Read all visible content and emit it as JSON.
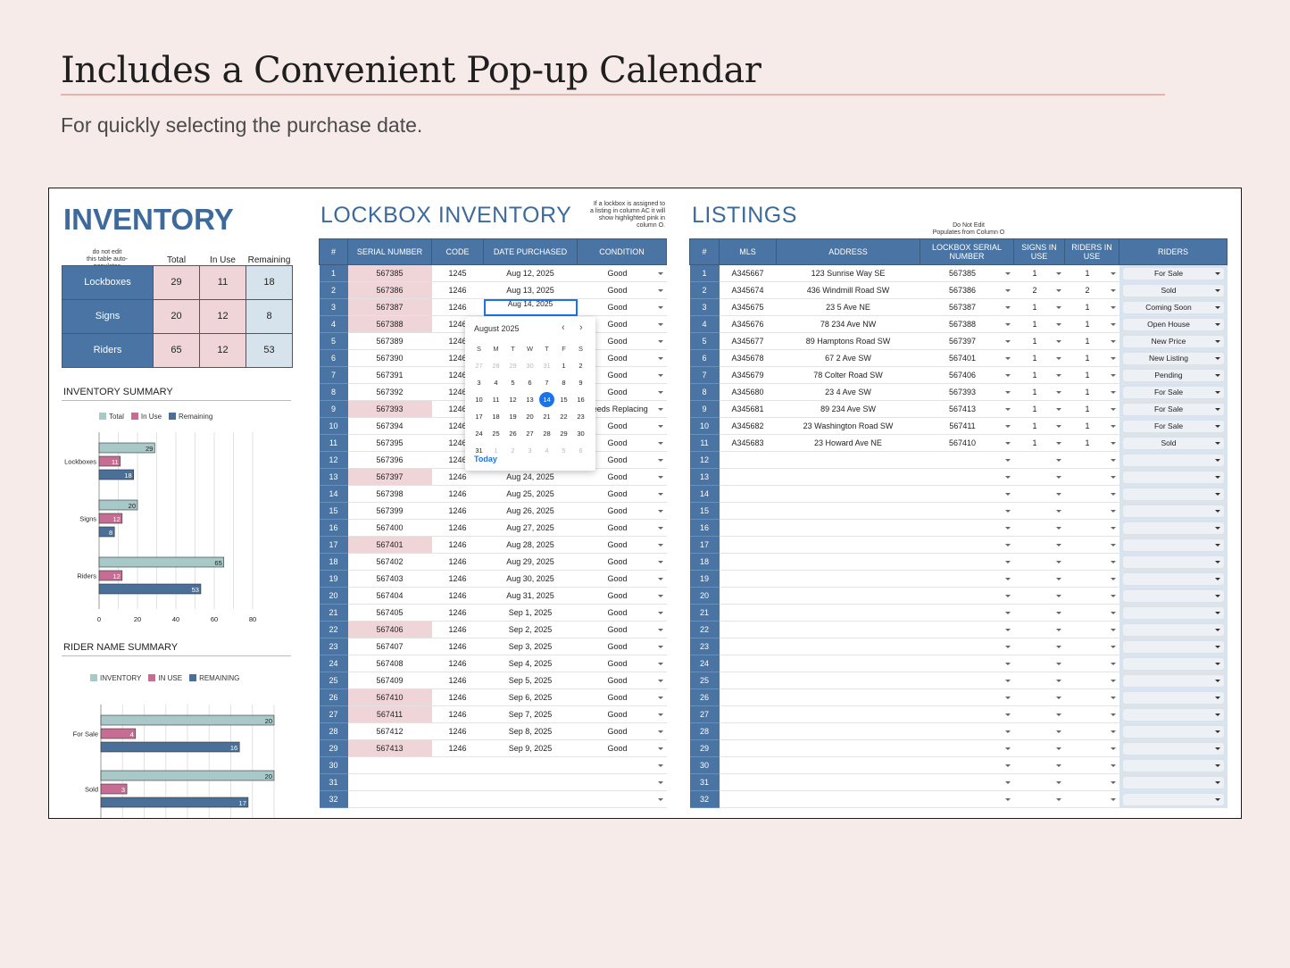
{
  "hero": {
    "title": "Includes a Convenient Pop-up Calendar",
    "subtitle": "For quickly selecting the purchase date."
  },
  "inventory": {
    "title": "INVENTORY",
    "note": [
      "do not edit",
      "this table auto-populates"
    ],
    "headers": [
      "Total",
      "In Use",
      "Remaining"
    ],
    "rows": [
      {
        "label": "Lockboxes",
        "total": "29",
        "in_use": "11",
        "remaining": "18"
      },
      {
        "label": "Signs",
        "total": "20",
        "in_use": "12",
        "remaining": "8"
      },
      {
        "label": "Riders",
        "total": "65",
        "in_use": "12",
        "remaining": "53"
      }
    ]
  },
  "inventory_summary": {
    "title": "INVENTORY SUMMARY"
  },
  "rider_summary": {
    "title": "RIDER NAME SUMMARY"
  },
  "chart_data": [
    {
      "type": "bar",
      "orientation": "horizontal",
      "title": "INVENTORY SUMMARY",
      "categories": [
        "Lockboxes",
        "Signs",
        "Riders"
      ],
      "series": [
        {
          "name": "Total",
          "values": [
            29,
            20,
            65
          ]
        },
        {
          "name": "In Use",
          "values": [
            11,
            12,
            12
          ]
        },
        {
          "name": "Remaining",
          "values": [
            18,
            8,
            53
          ]
        }
      ],
      "xlim": [
        0,
        80
      ],
      "xticks": [
        "0",
        "20",
        "40",
        "60",
        "80"
      ],
      "legend": "top",
      "colors": [
        "#a9c9c9",
        "#c76d94",
        "#4a6f98"
      ]
    },
    {
      "type": "bar",
      "orientation": "horizontal",
      "title": "RIDER NAME SUMMARY",
      "categories": [
        "For Sale",
        "Sold"
      ],
      "series": [
        {
          "name": "INVENTORY",
          "values": [
            20,
            20
          ]
        },
        {
          "name": "IN USE",
          "values": [
            4,
            3
          ]
        },
        {
          "name": "REMAINING",
          "values": [
            16,
            17
          ]
        }
      ],
      "xlim": [
        0,
        20
      ],
      "legend": "top",
      "colors": [
        "#a9c9c9",
        "#c76d94",
        "#4a6f98"
      ]
    }
  ],
  "lockbox": {
    "title": "LOCKBOX INVENTORY",
    "note": [
      "If a lockbox is assigned to",
      "a listing in column AC it will",
      "show highlighted pink in",
      "column O."
    ],
    "headers": [
      "#",
      "SERIAL NUMBER",
      "CODE",
      "DATE PURCHASED",
      "CONDITION"
    ],
    "rows": [
      [
        "1",
        "567385",
        "1245",
        "Aug 12, 2025",
        "Good",
        true
      ],
      [
        "2",
        "567386",
        "1246",
        "Aug 13, 2025",
        "Good",
        true
      ],
      [
        "3",
        "567387",
        "1246",
        "Aug 14, 2025",
        "Good",
        true
      ],
      [
        "4",
        "567388",
        "1246",
        "",
        "Good",
        true
      ],
      [
        "5",
        "567389",
        "1246",
        "",
        "Good",
        false
      ],
      [
        "6",
        "567390",
        "1246",
        "",
        "Good",
        false
      ],
      [
        "7",
        "567391",
        "1246",
        "",
        "Good",
        false
      ],
      [
        "8",
        "567392",
        "1246",
        "",
        "Good",
        false
      ],
      [
        "9",
        "567393",
        "1246",
        "",
        "Needs Replacing",
        true
      ],
      [
        "10",
        "567394",
        "1246",
        "",
        "Good",
        false
      ],
      [
        "11",
        "567395",
        "1246",
        "",
        "Good",
        false
      ],
      [
        "12",
        "567396",
        "1246",
        "",
        "Good",
        false
      ],
      [
        "13",
        "567397",
        "1246",
        "Aug 24, 2025",
        "Good",
        true
      ],
      [
        "14",
        "567398",
        "1246",
        "Aug 25, 2025",
        "Good",
        false
      ],
      [
        "15",
        "567399",
        "1246",
        "Aug 26, 2025",
        "Good",
        false
      ],
      [
        "16",
        "567400",
        "1246",
        "Aug 27, 2025",
        "Good",
        false
      ],
      [
        "17",
        "567401",
        "1246",
        "Aug 28, 2025",
        "Good",
        true
      ],
      [
        "18",
        "567402",
        "1246",
        "Aug 29, 2025",
        "Good",
        false
      ],
      [
        "19",
        "567403",
        "1246",
        "Aug 30, 2025",
        "Good",
        false
      ],
      [
        "20",
        "567404",
        "1246",
        "Aug 31, 2025",
        "Good",
        false
      ],
      [
        "21",
        "567405",
        "1246",
        "Sep 1, 2025",
        "Good",
        false
      ],
      [
        "22",
        "567406",
        "1246",
        "Sep 2, 2025",
        "Good",
        true
      ],
      [
        "23",
        "567407",
        "1246",
        "Sep 3, 2025",
        "Good",
        false
      ],
      [
        "24",
        "567408",
        "1246",
        "Sep 4, 2025",
        "Good",
        false
      ],
      [
        "25",
        "567409",
        "1246",
        "Sep 5, 2025",
        "Good",
        false
      ],
      [
        "26",
        "567410",
        "1246",
        "Sep 6, 2025",
        "Good",
        true
      ],
      [
        "27",
        "567411",
        "1246",
        "Sep 7, 2025",
        "Good",
        true
      ],
      [
        "28",
        "567412",
        "1246",
        "Sep 8, 2025",
        "Good",
        false
      ],
      [
        "29",
        "567413",
        "1246",
        "Sep 9, 2025",
        "Good",
        true
      ],
      [
        "30",
        "",
        "",
        "",
        "",
        false
      ],
      [
        "31",
        "",
        "",
        "",
        "",
        false
      ],
      [
        "32",
        "",
        "",
        "",
        "",
        false
      ]
    ]
  },
  "calendar": {
    "title": "August 2025",
    "prev": "‹",
    "next": "›",
    "today": "Today",
    "weekdays": [
      "S",
      "M",
      "T",
      "W",
      "T",
      "F",
      "S"
    ],
    "days": [
      [
        "27",
        "o"
      ],
      [
        "28",
        "o"
      ],
      [
        "29",
        "o"
      ],
      [
        "30",
        "o"
      ],
      [
        "31",
        "o"
      ],
      [
        "1",
        ""
      ],
      [
        "2",
        ""
      ],
      [
        "3",
        ""
      ],
      [
        "4",
        ""
      ],
      [
        "5",
        ""
      ],
      [
        "6",
        ""
      ],
      [
        "7",
        ""
      ],
      [
        "8",
        ""
      ],
      [
        "9",
        ""
      ],
      [
        "10",
        ""
      ],
      [
        "11",
        ""
      ],
      [
        "12",
        ""
      ],
      [
        "13",
        ""
      ],
      [
        "14",
        "sl"
      ],
      [
        "15",
        ""
      ],
      [
        "16",
        ""
      ],
      [
        "17",
        ""
      ],
      [
        "18",
        ""
      ],
      [
        "19",
        ""
      ],
      [
        "20",
        ""
      ],
      [
        "21",
        ""
      ],
      [
        "22",
        ""
      ],
      [
        "23",
        ""
      ],
      [
        "24",
        ""
      ],
      [
        "25",
        ""
      ],
      [
        "26",
        ""
      ],
      [
        "27",
        ""
      ],
      [
        "28",
        ""
      ],
      [
        "29",
        ""
      ],
      [
        "30",
        ""
      ],
      [
        "31",
        ""
      ],
      [
        "1",
        "o"
      ],
      [
        "2",
        "o"
      ],
      [
        "3",
        "o"
      ],
      [
        "4",
        "o"
      ],
      [
        "5",
        "o"
      ],
      [
        "6",
        "o"
      ]
    ]
  },
  "listings": {
    "title": "LISTINGS",
    "note": [
      "Do Not Edit",
      "Populates from Column O"
    ],
    "headers": [
      "#",
      "MLS",
      "ADDRESS",
      "LOCKBOX SERIAL NUMBER",
      "SIGNS IN USE",
      "RIDERS IN USE",
      "RIDERS"
    ],
    "rows": [
      [
        "1",
        "A345667",
        "123 Sunrise Way SE",
        "567385",
        "1",
        "1",
        "For Sale"
      ],
      [
        "2",
        "A345674",
        "436 Windmill Road SW",
        "567386",
        "2",
        "2",
        "Sold"
      ],
      [
        "3",
        "A345675",
        "23 5 Ave NE",
        "567387",
        "1",
        "1",
        "Coming Soon"
      ],
      [
        "4",
        "A345676",
        "78 234 Ave NW",
        "567388",
        "1",
        "1",
        "Open House"
      ],
      [
        "5",
        "A345677",
        "89 Hamptons Road SW",
        "567397",
        "1",
        "1",
        "New Price"
      ],
      [
        "6",
        "A345678",
        "67 2 Ave SW",
        "567401",
        "1",
        "1",
        "New Listing"
      ],
      [
        "7",
        "A345679",
        "78 Colter Road SW",
        "567406",
        "1",
        "1",
        "Pending"
      ],
      [
        "8",
        "A345680",
        "23 4 Ave SW",
        "567393",
        "1",
        "1",
        "For Sale"
      ],
      [
        "9",
        "A345681",
        "89 234 Ave SW",
        "567413",
        "1",
        "1",
        "For Sale"
      ],
      [
        "10",
        "A345682",
        "23 Washington Road SW",
        "567411",
        "1",
        "1",
        "For Sale"
      ],
      [
        "11",
        "A345683",
        "23 Howard Ave NE",
        "567410",
        "1",
        "1",
        "Sold"
      ],
      [
        "12",
        "",
        "",
        "",
        "",
        "",
        ""
      ],
      [
        "13",
        "",
        "",
        "",
        "",
        "",
        ""
      ],
      [
        "14",
        "",
        "",
        "",
        "",
        "",
        ""
      ],
      [
        "15",
        "",
        "",
        "",
        "",
        "",
        ""
      ],
      [
        "16",
        "",
        "",
        "",
        "",
        "",
        ""
      ],
      [
        "17",
        "",
        "",
        "",
        "",
        "",
        ""
      ],
      [
        "18",
        "",
        "",
        "",
        "",
        "",
        ""
      ],
      [
        "19",
        "",
        "",
        "",
        "",
        "",
        ""
      ],
      [
        "20",
        "",
        "",
        "",
        "",
        "",
        ""
      ],
      [
        "21",
        "",
        "",
        "",
        "",
        "",
        ""
      ],
      [
        "22",
        "",
        "",
        "",
        "",
        "",
        ""
      ],
      [
        "23",
        "",
        "",
        "",
        "",
        "",
        ""
      ],
      [
        "24",
        "",
        "",
        "",
        "",
        "",
        ""
      ],
      [
        "25",
        "",
        "",
        "",
        "",
        "",
        ""
      ],
      [
        "26",
        "",
        "",
        "",
        "",
        "",
        ""
      ],
      [
        "27",
        "",
        "",
        "",
        "",
        "",
        ""
      ],
      [
        "28",
        "",
        "",
        "",
        "",
        "",
        ""
      ],
      [
        "29",
        "",
        "",
        "",
        "",
        "",
        ""
      ],
      [
        "30",
        "",
        "",
        "",
        "",
        "",
        ""
      ],
      [
        "31",
        "",
        "",
        "",
        "",
        "",
        ""
      ],
      [
        "32",
        "",
        "",
        "",
        "",
        "",
        ""
      ]
    ]
  }
}
